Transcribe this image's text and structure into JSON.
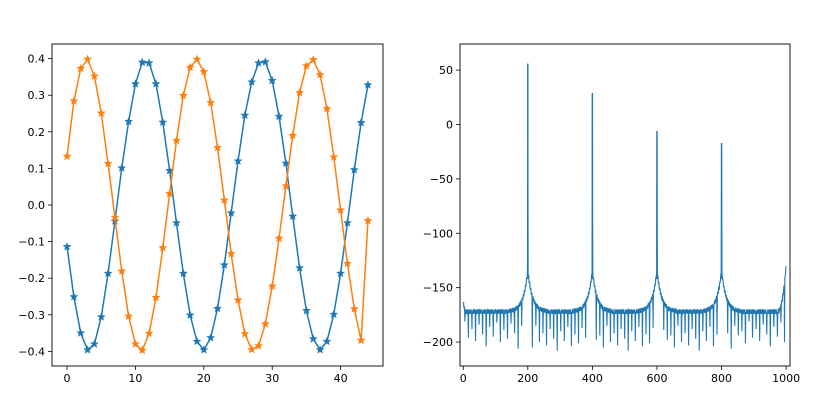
{
  "figure": {
    "background": "#ffffff"
  },
  "chart_data": [
    {
      "type": "line",
      "marker": "star",
      "title": "",
      "xlabel": "",
      "ylabel": "",
      "xlim": [
        -2.2,
        46.2
      ],
      "ylim": [
        -0.44,
        0.44
      ],
      "grid": false,
      "legend": "none",
      "xticks": [
        0,
        10,
        20,
        30,
        40
      ],
      "xtick_labels": [
        "0",
        "10",
        "20",
        "30",
        "40"
      ],
      "yticks": [
        0.4,
        0.3,
        0.2,
        0.1,
        0.0,
        -0.1,
        -0.2,
        -0.3,
        -0.4
      ],
      "ytick_labels": [
        "0.4",
        "0.3",
        "0.2",
        "0.1",
        "0.0",
        "−0.1",
        "−0.2",
        "−0.3",
        "−0.4"
      ],
      "x": [
        0,
        1,
        2,
        3,
        4,
        5,
        6,
        7,
        8,
        9,
        10,
        11,
        12,
        13,
        14,
        15,
        16,
        17,
        18,
        19,
        20,
        21,
        22,
        23,
        24,
        25,
        26,
        27,
        28,
        29,
        30,
        31,
        32,
        33,
        34,
        35,
        36,
        37,
        38,
        39,
        40,
        41,
        42,
        43,
        44
      ],
      "series": [
        {
          "color": "#1f77b4",
          "values": [
            -0.114,
            -0.251,
            -0.35,
            -0.396,
            -0.38,
            -0.306,
            -0.187,
            -0.044,
            0.101,
            0.228,
            0.331,
            0.39,
            0.388,
            0.331,
            0.226,
            0.094,
            -0.049,
            -0.187,
            -0.301,
            -0.373,
            -0.396,
            -0.363,
            -0.283,
            -0.164,
            -0.022,
            0.12,
            0.245,
            0.336,
            0.388,
            0.391,
            0.34,
            0.242,
            0.114,
            -0.031,
            -0.172,
            -0.289,
            -0.366,
            -0.396,
            -0.373,
            -0.299,
            -0.187,
            -0.049,
            0.096,
            0.225,
            0.328
          ]
        },
        {
          "color": "#ff7f0e",
          "values": [
            0.133,
            0.284,
            0.373,
            0.398,
            0.352,
            0.251,
            0.113,
            -0.034,
            -0.181,
            -0.304,
            -0.38,
            -0.397,
            -0.351,
            -0.253,
            -0.117,
            0.031,
            0.176,
            0.299,
            0.376,
            0.398,
            0.364,
            0.28,
            0.157,
            0.013,
            -0.133,
            -0.26,
            -0.352,
            -0.395,
            -0.385,
            -0.325,
            -0.222,
            -0.091,
            0.052,
            0.19,
            0.307,
            0.38,
            0.397,
            0.356,
            0.263,
            0.131,
            -0.014,
            -0.16,
            -0.284,
            -0.37,
            -0.043
          ]
        }
      ]
    },
    {
      "type": "line",
      "title": "",
      "xlabel": "",
      "ylabel": "",
      "xlim": [
        -10,
        1012
      ],
      "ylim": [
        -222,
        74
      ],
      "grid": false,
      "legend": "none",
      "xticks": [
        0,
        200,
        400,
        600,
        800,
        1000
      ],
      "xtick_labels": [
        "0",
        "200",
        "400",
        "600",
        "800",
        "1000"
      ],
      "yticks": [
        50,
        0,
        -50,
        -100,
        -150,
        -200
      ],
      "ytick_labels": [
        "50",
        "0",
        "−50",
        "−100",
        "−150",
        "−200"
      ],
      "series": [
        {
          "color": "#1f77b4",
          "baseline": -172,
          "peaks": [
            {
              "x": 200,
              "y": 56
            },
            {
              "x": 400,
              "y": 29
            },
            {
              "x": 600,
              "y": -6
            },
            {
              "x": 800,
              "y": -17
            }
          ],
          "end_point": {
            "x": 1000,
            "y": -130
          },
          "dip_lows": [
            -185,
            -200,
            -192,
            -203,
            -188,
            -197,
            -208,
            -190,
            -199,
            -186,
            -204,
            -193,
            -201,
            -187,
            -196,
            -210,
            -189,
            -198,
            -194,
            -205
          ]
        }
      ]
    }
  ]
}
